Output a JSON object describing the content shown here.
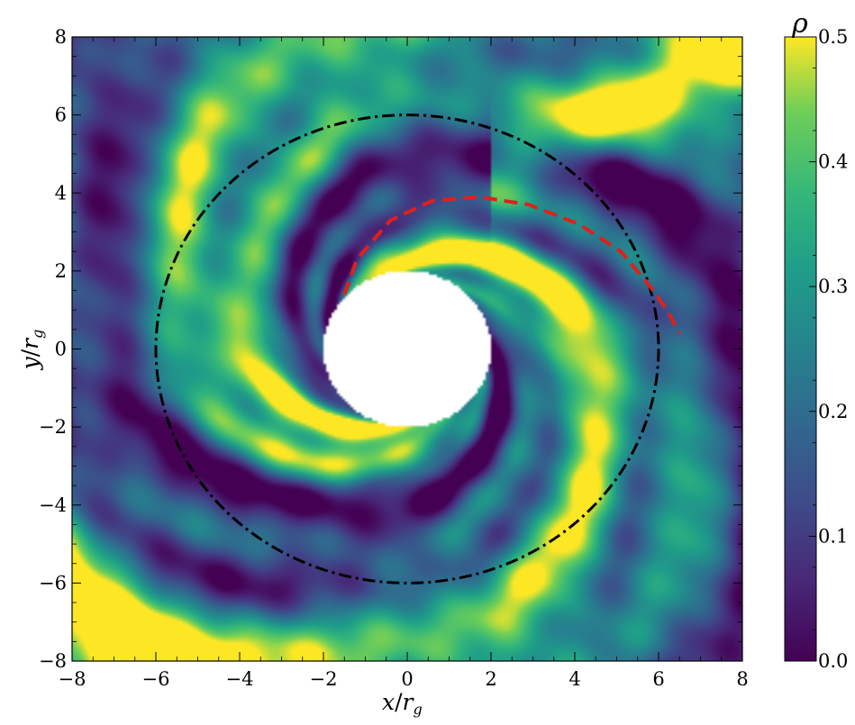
{
  "chart_data": {
    "type": "heatmap",
    "title": "",
    "xlabel": "x/r_g",
    "ylabel": "y/r_g",
    "xlim": [
      -8,
      8
    ],
    "ylim": [
      -8,
      8
    ],
    "xticks": [
      -8,
      -6,
      -4,
      -2,
      0,
      2,
      4,
      6,
      8
    ],
    "yticks": [
      -8,
      -6,
      -4,
      -2,
      0,
      2,
      4,
      6,
      8
    ],
    "xtick_labels": [
      "−8",
      "−6",
      "−4",
      "−2",
      "0",
      "2",
      "4",
      "6",
      "8"
    ],
    "ytick_labels": [
      "−8",
      "−6",
      "−4",
      "−2",
      "0",
      "2",
      "4",
      "6",
      "8"
    ],
    "xlabel_parts": {
      "numerator": "x",
      "denominator": "r",
      "subscript": "g"
    },
    "ylabel_parts": {
      "numerator": "y",
      "denominator": "r",
      "subscript": "g"
    },
    "colorbar": {
      "label": "ρ",
      "colormap": "viridis",
      "range": [
        0.0,
        0.5
      ],
      "ticks": [
        0.0,
        0.1,
        0.2,
        0.3,
        0.4,
        0.5
      ],
      "tick_labels": [
        "0.0",
        "0.1",
        "0.2",
        "0.3",
        "0.4",
        "0.5"
      ]
    },
    "field": {
      "description_in_data": "density field with spiral arms around an inner excised region",
      "excised_radius": 2,
      "spiral_arms": 2,
      "background_level": 0.22
    },
    "overlays": [
      {
        "name": "",
        "type": "circle",
        "center": [
          0,
          0
        ],
        "radius": 6,
        "color": "#000000",
        "style": "dashdot"
      },
      {
        "name": "",
        "type": "arc",
        "color": "#e0201b",
        "style": "dashed",
        "points": [
          [
            -1.5,
            1.4
          ],
          [
            -1.2,
            2.3
          ],
          [
            -0.4,
            3.3
          ],
          [
            0.6,
            3.8
          ],
          [
            1.7,
            3.9
          ],
          [
            2.9,
            3.7
          ],
          [
            4.1,
            3.2
          ],
          [
            5.1,
            2.5
          ],
          [
            5.8,
            1.6
          ],
          [
            6.2,
            1.0
          ],
          [
            6.5,
            0.4
          ]
        ]
      }
    ]
  }
}
